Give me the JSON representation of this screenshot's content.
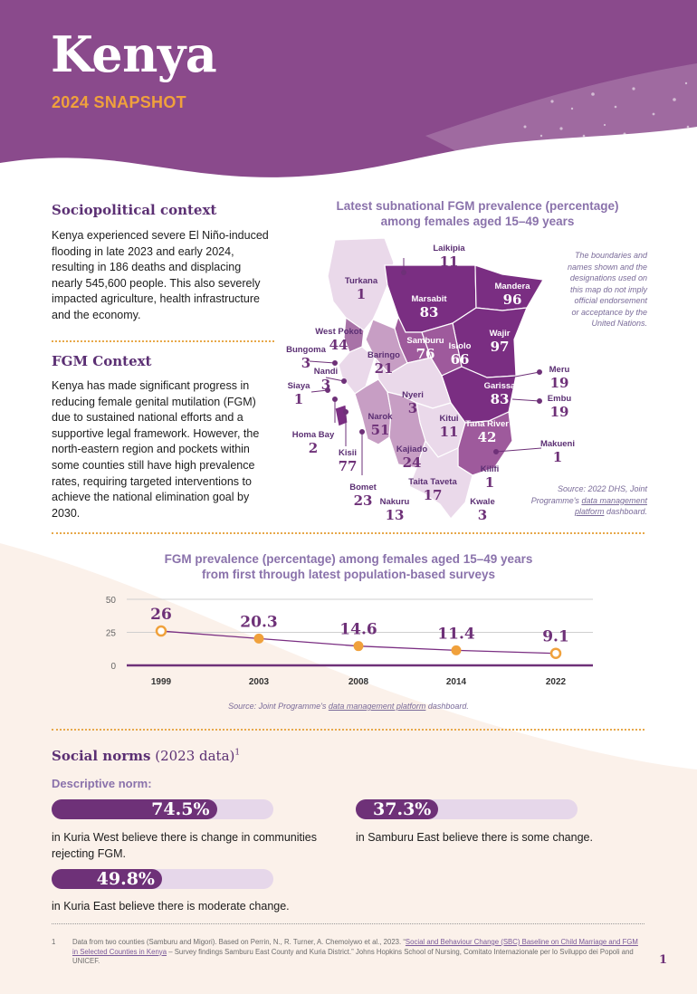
{
  "header": {
    "title": "Kenya",
    "subtitle": "2024 SNAPSHOT"
  },
  "colors": {
    "purple": "#6e3178",
    "orange": "#f0a13c",
    "light_purple": "#e6d7ea",
    "lavender": "#8a72ab"
  },
  "sociopolitical": {
    "heading": "Sociopolitical context",
    "body": "Kenya experienced severe El Niño-induced flooding in late 2023 and early 2024, resulting in 186 deaths and displacing nearly 545,600 people. This also severely impacted agriculture, health infrastructure and the economy."
  },
  "fgm_context": {
    "heading": "FGM Context",
    "body": "Kenya has made significant progress in reducing female genital mutilation (FGM) due to sustained national efforts and a supportive legal framework. However, the north-eastern region and pockets within some counties still have high prevalence rates, requiring targeted interventions to achieve the national elimination goal by 2030."
  },
  "map": {
    "title_line1": "Latest subnational FGM prevalence (percentage)",
    "title_line2": "among females aged 15–49 years",
    "disclaimer": [
      "The boundaries and",
      "names shown and the",
      "designations used on",
      "this map do not imply",
      "official endorsement",
      "or acceptance by the",
      "United Nations."
    ],
    "source_prefix": "Source: 2022 DHS, Joint",
    "source_mid": "Programme's ",
    "source_link1": "data management",
    "source_link2": "platform",
    "source_suffix": " dashboard.",
    "counties": [
      {
        "name": "Laikipia",
        "value": "11"
      },
      {
        "name": "Turkana",
        "value": "1"
      },
      {
        "name": "Marsabit",
        "value": "83"
      },
      {
        "name": "Mandera",
        "value": "96"
      },
      {
        "name": "Wajir",
        "value": "97"
      },
      {
        "name": "West Pokot",
        "value": "44"
      },
      {
        "name": "Bungoma",
        "value": "3"
      },
      {
        "name": "Samburu",
        "value": "76"
      },
      {
        "name": "Isiolo",
        "value": "66"
      },
      {
        "name": "Baringo",
        "value": "21"
      },
      {
        "name": "Nandi",
        "value": "3"
      },
      {
        "name": "Siaya",
        "value": "1"
      },
      {
        "name": "Meru",
        "value": "19"
      },
      {
        "name": "Garissa",
        "value": "83"
      },
      {
        "name": "Nyeri",
        "value": "3"
      },
      {
        "name": "Embu",
        "value": "19"
      },
      {
        "name": "Narok",
        "value": "51"
      },
      {
        "name": "Kitui",
        "value": "11"
      },
      {
        "name": "Tana River",
        "value": "42"
      },
      {
        "name": "Homa Bay",
        "value": "2"
      },
      {
        "name": "Kisii",
        "value": "77"
      },
      {
        "name": "Kajiado",
        "value": "24"
      },
      {
        "name": "Makueni",
        "value": "1"
      },
      {
        "name": "Kilifi",
        "value": "1"
      },
      {
        "name": "Bomet",
        "value": "23"
      },
      {
        "name": "Taita Taveta",
        "value": "17"
      },
      {
        "name": "Nakuru",
        "value": "13"
      },
      {
        "name": "Kwale",
        "value": "3"
      }
    ]
  },
  "chart_data": {
    "type": "line",
    "title_line1": "FGM prevalence (percentage) among females aged 15–49 years",
    "title_line2": "from first through latest population-based surveys",
    "x": [
      "1999",
      "2003",
      "2008",
      "2014",
      "2022"
    ],
    "values": [
      26,
      20.3,
      14.6,
      11.4,
      9.1
    ],
    "value_labels": [
      "26",
      "20.3",
      "14.6",
      "11.4",
      "9.1"
    ],
    "y_ticks": [
      "50",
      "25",
      "0"
    ],
    "ylim": [
      0,
      50
    ],
    "grid": true,
    "xlabel": "",
    "ylabel": "",
    "source_prefix": "Source: Joint Programme's ",
    "source_link": "data management platform",
    "source_suffix": " dashboard."
  },
  "social_norms": {
    "heading": "Social norms",
    "heading_suffix": " (2023 data)",
    "footnote_mark": "1",
    "subheading": "Descriptive norm:",
    "items": [
      {
        "value": "74.5%",
        "fraction": 0.745,
        "text": "in Kuria West believe there is change in communities rejecting FGM."
      },
      {
        "value": "37.3%",
        "fraction": 0.373,
        "text": "in Samburu East believe there is some change."
      },
      {
        "value": "49.8%",
        "fraction": 0.498,
        "text": "in Kuria East believe there is moderate change."
      }
    ]
  },
  "footnote": {
    "number": "1",
    "text_pre": "Data from two counties (Samburu and Migori). Based on Perrin, N., R. Turner, A. Chemoiywo et al., 2023. “",
    "link_text": "Social and Behaviour Change (SBC) Baseline on Child Marriage and FGM in Selected Counties in Kenya",
    "text_post": " – Survey findings Samburu East County and Kuria District.” Johns Hopkins School of Nursing, Comitato Internazionale per lo Sviluppo dei Popoli and UNICEF."
  },
  "page_number": "1"
}
